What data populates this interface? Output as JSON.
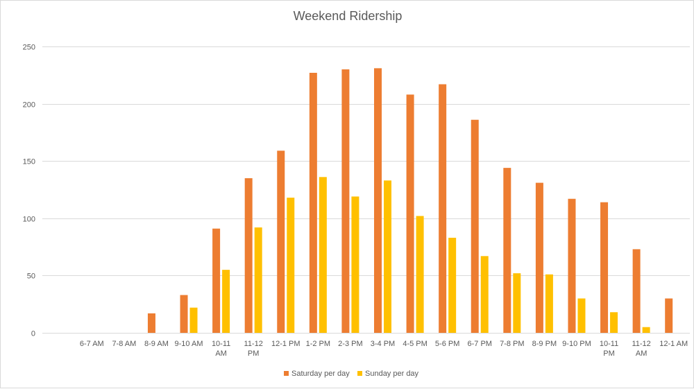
{
  "chart_data": {
    "type": "bar",
    "title": "Weekend Ridership",
    "xlabel": "",
    "ylabel": "",
    "categories": [
      "6-7 AM",
      "7-8 AM",
      "8-9 AM",
      "9-10 AM",
      "10-11 AM",
      "11-12 PM",
      "12-1 PM",
      "1-2 PM",
      "2-3 PM",
      "3-4 PM",
      "4-5 PM",
      "5-6 PM",
      "6-7 PM",
      "7-8 PM",
      "8-9 PM",
      "9-10 PM",
      "10-11 PM",
      "11-12 AM",
      "12-1 AM"
    ],
    "series": [
      {
        "name": "Saturday per day",
        "color": "#ed7d31",
        "values": [
          0,
          0,
          17,
          33,
          91,
          135,
          159,
          227,
          230,
          231,
          208,
          217,
          186,
          144,
          131,
          117,
          114,
          73,
          30
        ]
      },
      {
        "name": "Sunday per day",
        "color": "#ffc000",
        "values": [
          0,
          0,
          0,
          22,
          55,
          92,
          118,
          136,
          119,
          133,
          102,
          83,
          67,
          52,
          51,
          30,
          18,
          5,
          0
        ]
      }
    ],
    "ylim": [
      0,
      250
    ],
    "yticks": [
      0,
      50,
      100,
      150,
      200,
      250
    ],
    "grid": true,
    "gridline_color": "#d9d9d9",
    "legend_position": "bottom"
  }
}
